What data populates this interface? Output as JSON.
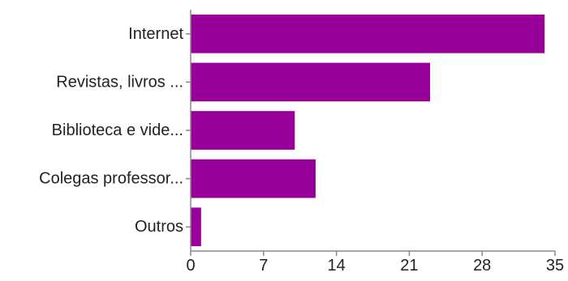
{
  "chart_data": {
    "type": "bar",
    "orientation": "horizontal",
    "categories": [
      "Internet",
      "Revistas, livros ...",
      "Biblioteca e vide...",
      "Colegas professor...",
      "Outros"
    ],
    "values": [
      34,
      23,
      10,
      12,
      1
    ],
    "xlim": [
      0,
      35
    ],
    "xticks": [
      "0",
      "7",
      "14",
      "21",
      "28",
      "35"
    ],
    "grid": false,
    "legend": "none",
    "bar_color": "#990099",
    "title": "",
    "xlabel": "",
    "ylabel": ""
  }
}
